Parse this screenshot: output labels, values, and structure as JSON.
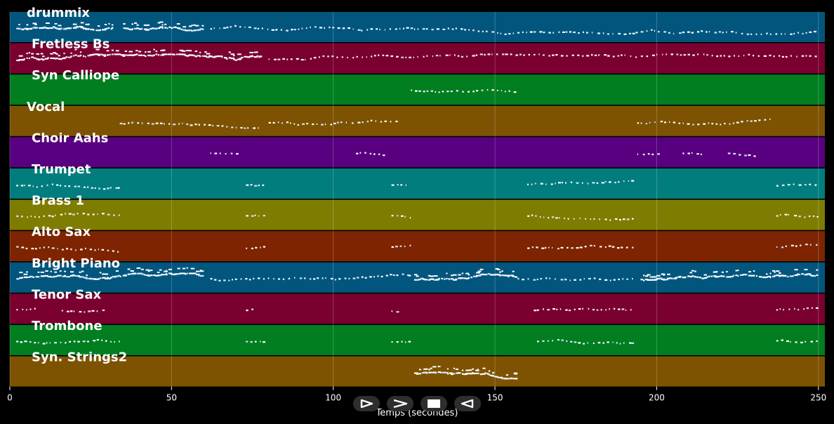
{
  "app": {
    "view": "piano-roll"
  },
  "chart_data": {
    "type": "piano-roll",
    "title": "",
    "xlabel": "Temps (secondes)",
    "ylabel": "",
    "xlim": [
      0,
      252
    ],
    "x_ticks": [
      0,
      50,
      100,
      150,
      200,
      250
    ],
    "grid": true,
    "tracks": [
      {
        "name": "drummix",
        "color": "#02567e",
        "segments": [
          [
            2,
            32,
            "dense"
          ],
          [
            35,
            60,
            "dense"
          ],
          [
            62,
            250,
            "sparse"
          ]
        ]
      },
      {
        "name": "Fretless Bs",
        "color": "#7a0030",
        "segments": [
          [
            2,
            78,
            "dense"
          ],
          [
            80,
            250,
            "sparse"
          ]
        ]
      },
      {
        "name": "Syn Calliope",
        "color": "#017e20",
        "segments": [
          [
            124,
            157,
            "sparse"
          ]
        ]
      },
      {
        "name": "Vocal",
        "color": "#7d5302",
        "segments": [
          [
            34,
            78,
            "sparse"
          ],
          [
            80,
            120,
            "sparse"
          ],
          [
            194,
            236,
            "sparse"
          ]
        ]
      },
      {
        "name": "Choir Aahs",
        "color": "#58007f",
        "segments": [
          [
            62,
            71,
            "sparse"
          ],
          [
            107,
            116,
            "sparse"
          ],
          [
            194,
            201,
            "sparse"
          ],
          [
            208,
            215,
            "sparse"
          ],
          [
            222,
            231,
            "sparse"
          ]
        ]
      },
      {
        "name": "Trumpet",
        "color": "#017d7d",
        "segments": [
          [
            2,
            34,
            "sparse"
          ],
          [
            73,
            79,
            "sparse"
          ],
          [
            118,
            124,
            "sparse"
          ],
          [
            160,
            193,
            "sparse"
          ],
          [
            237,
            250,
            "sparse"
          ]
        ]
      },
      {
        "name": "Brass 1",
        "color": "#7e7d01",
        "segments": [
          [
            2,
            34,
            "sparse"
          ],
          [
            73,
            79,
            "sparse"
          ],
          [
            118,
            124,
            "sparse"
          ],
          [
            160,
            193,
            "sparse"
          ],
          [
            237,
            250,
            "sparse"
          ]
        ]
      },
      {
        "name": "Alto Sax",
        "color": "#7e2401",
        "segments": [
          [
            2,
            34,
            "sparse"
          ],
          [
            73,
            79,
            "sparse"
          ],
          [
            118,
            124,
            "sparse"
          ],
          [
            160,
            193,
            "sparse"
          ],
          [
            237,
            250,
            "sparse"
          ]
        ]
      },
      {
        "name": "Bright Piano",
        "color": "#02567e",
        "segments": [
          [
            2,
            60,
            "dense"
          ],
          [
            62,
            124,
            "sparse"
          ],
          [
            125,
            157,
            "dense"
          ],
          [
            157,
            193,
            "sparse"
          ],
          [
            195,
            250,
            "dense"
          ]
        ]
      },
      {
        "name": "Tenor Sax",
        "color": "#7a0030",
        "segments": [
          [
            2,
            8,
            "sparse"
          ],
          [
            16,
            30,
            "sparse"
          ],
          [
            73,
            76,
            "sparse"
          ],
          [
            118,
            121,
            "sparse"
          ],
          [
            162,
            193,
            "sparse"
          ],
          [
            237,
            250,
            "sparse"
          ]
        ]
      },
      {
        "name": "Trombone",
        "color": "#017e20",
        "segments": [
          [
            2,
            34,
            "sparse"
          ],
          [
            73,
            79,
            "sparse"
          ],
          [
            118,
            124,
            "sparse"
          ],
          [
            163,
            193,
            "sparse"
          ],
          [
            237,
            250,
            "sparse"
          ]
        ]
      },
      {
        "name": "Syn. Strings2",
        "color": "#7d5302",
        "segments": [
          [
            125,
            157,
            "dense"
          ]
        ]
      }
    ]
  },
  "controls": [
    {
      "name": "play-button",
      "icon": "play-icon"
    },
    {
      "name": "forward-button",
      "icon": "forward-icon"
    },
    {
      "name": "stop-button",
      "icon": "stop-icon"
    },
    {
      "name": "rewind-button",
      "icon": "rewind-icon"
    }
  ]
}
